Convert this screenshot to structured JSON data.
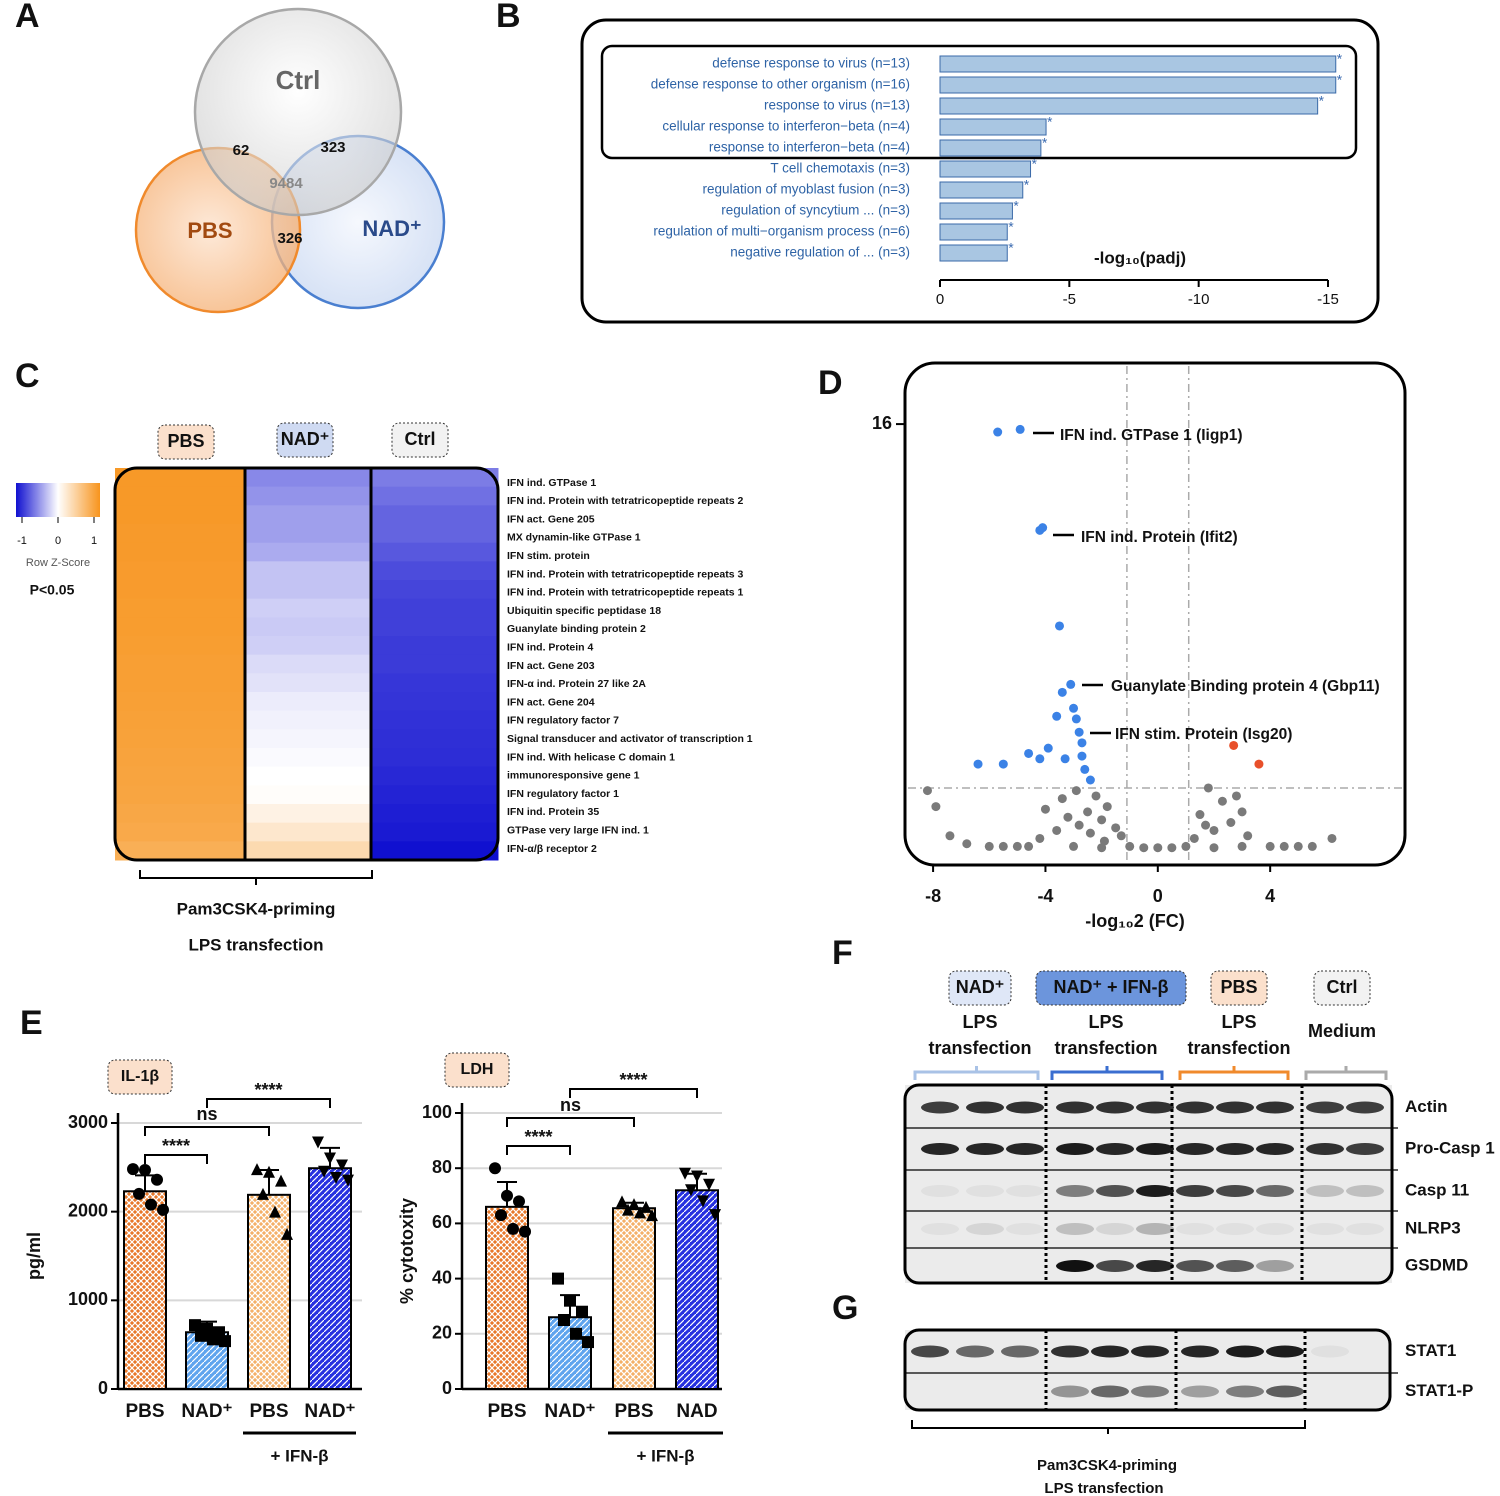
{
  "panel_labels": [
    "A",
    "B",
    "C",
    "D",
    "E",
    "F",
    "G"
  ],
  "venn": {
    "sets": [
      "Ctrl",
      "PBS",
      "NAD⁺"
    ],
    "counts": [
      62,
      323,
      9484,
      326
    ]
  },
  "chart_data": [
    {
      "type": "barh",
      "categories": [
        "defense response to virus (n=13)",
        "defense response to other organism (n=16)",
        "response to virus (n=13)",
        "cellular response to interferon−beta (n=4)",
        "response to interferon−beta (n=4)",
        "T cell chemotaxis (n=3)",
        "regulation of myoblast fusion (n=3)",
        "regulation of syncytium ... (n=3)",
        "regulation of multi−organism process (n=6)",
        "negative regulation of ... (n=3)"
      ],
      "values": [
        -15.3,
        -15.3,
        -14.6,
        -4.1,
        -3.9,
        -3.5,
        -3.2,
        -2.8,
        -2.6,
        -2.6
      ],
      "markers": [
        "*",
        "*",
        "*",
        "*",
        "*",
        "*",
        "*",
        "*",
        "*",
        "*"
      ],
      "color": "#a9c6e2",
      "xlabel": "-log₁₀(padj)",
      "xlim": [
        0,
        -15
      ],
      "xticks": [
        0,
        -5,
        -10,
        -15
      ]
    },
    {
      "type": "scatter",
      "xlabel": "-log₁₀2 (FC)",
      "xlim": [
        -9,
        8.8
      ],
      "ylim": [
        -0.6,
        18.3
      ],
      "xticks": [
        -8,
        -4,
        0,
        4
      ],
      "yticks": [
        16
      ],
      "vlines": [
        -1.1,
        1.1
      ],
      "hline": 2.3,
      "annotations": [
        "IFN ind. GTPase 1 (Iigp1)",
        "IFN ind. Protein (Ifit2)",
        "Guanylate Binding protein 4 (Gbp11)",
        "IFN stim. Protein (Isg20)"
      ],
      "series": [
        {
          "color": "#7a7a7a",
          "x": [
            -2.2,
            -1.8,
            -2.5,
            -2.0,
            -1.5,
            -2.8,
            -3.2,
            -1.3,
            -2.4,
            -3.6,
            -1.9,
            -4.2,
            -2.9,
            -4.0,
            -3.4,
            1.8,
            2.3,
            1.5,
            2.6,
            2.0,
            1.3,
            3.0,
            3.2,
            2.8,
            1.7,
            -8.2,
            -7.9,
            -7.4,
            -6.8,
            -6.0,
            -5.5,
            -5.0,
            -4.6,
            -1.0,
            -0.5,
            0,
            0.5,
            1.0,
            4.5,
            5.0,
            5.5,
            6.2,
            4.0,
            -3.0,
            -2.0,
            2.0,
            3.0
          ],
          "values": [
            2.0,
            1.6,
            1.4,
            1.1,
            0.8,
            0.9,
            1.2,
            0.5,
            0.6,
            0.7,
            0.3,
            0.4,
            2.2,
            1.5,
            1.9,
            2.3,
            1.8,
            1.3,
            1.0,
            0.7,
            0.4,
            1.4,
            0.5,
            2.0,
            0.9,
            2.2,
            1.6,
            0.5,
            0.2,
            0.1,
            0.1,
            0.1,
            0.1,
            0.1,
            0.05,
            0.05,
            0.05,
            0.1,
            0.1,
            0.1,
            0.1,
            0.4,
            0.1,
            0.1,
            0.05,
            0.05,
            0.1
          ]
        },
        {
          "color": "#3b82e6",
          "x": [
            -5.7,
            -4.9,
            -4.2,
            -4.1,
            -3.5,
            -3.1,
            -3.4,
            -3.6,
            -3.0,
            -2.9,
            -2.8,
            -2.7,
            -2.7,
            -2.6,
            -2.4,
            -3.9,
            -4.6,
            -5.5,
            -6.4,
            -4.2,
            -3.3
          ],
          "values": [
            15.7,
            15.8,
            12.0,
            12.1,
            8.4,
            6.2,
            5.9,
            5.0,
            5.3,
            4.9,
            4.4,
            4.0,
            3.5,
            3.0,
            2.6,
            3.8,
            3.6,
            3.2,
            3.2,
            3.4,
            3.4
          ]
        },
        {
          "color": "#e8502a",
          "x": [
            2.7,
            3.6
          ],
          "values": [
            3.9,
            3.2
          ]
        }
      ]
    },
    {
      "type": "bar",
      "title": "IL-1β",
      "categories": [
        "PBS",
        "NAD⁺",
        "PBS",
        "NAD⁺"
      ],
      "group_label": "+ IFN-β",
      "ylabel": "pg/ml",
      "ylim": [
        0,
        3000
      ],
      "yticks": [
        0,
        1000,
        2000,
        3000
      ],
      "grid": true,
      "values": [
        2230,
        640,
        2190,
        2490
      ],
      "errors": [
        180,
        120,
        280,
        230
      ],
      "points": [
        [
          2480,
          2470,
          2360,
          2200,
          2080,
          2020
        ],
        [
          720,
          680,
          640,
          600,
          560,
          540
        ],
        [
          2480,
          2450,
          2350,
          2200,
          2000,
          1750
        ],
        [
          2780,
          2600,
          2520,
          2450,
          2380,
          2350
        ]
      ],
      "markers": [
        "circle",
        "square",
        "triangle",
        "triangle-down"
      ],
      "colors": [
        "#e8782a",
        "#5fa4ee",
        "#f4b068",
        "#2630e0"
      ],
      "comparisons": [
        {
          "label": "****",
          "pair": [
            0,
            1
          ]
        },
        {
          "label": "ns",
          "pair": [
            0,
            2
          ]
        },
        {
          "label": "****",
          "pair": [
            1,
            3
          ]
        }
      ]
    },
    {
      "type": "bar",
      "title": "LDH",
      "categories": [
        "PBS",
        "NAD⁺",
        "PBS",
        "NAD"
      ],
      "group_label": "+ IFN-β",
      "ylabel": "% cytotoxity",
      "ylim": [
        0,
        100
      ],
      "yticks": [
        0,
        20,
        40,
        60,
        80,
        100
      ],
      "grid": true,
      "values": [
        66,
        26,
        65.5,
        72
      ],
      "errors": [
        9,
        8,
        2,
        6
      ],
      "points": [
        [
          80,
          70,
          68,
          63,
          58,
          57
        ],
        [
          40,
          32,
          28,
          25,
          20,
          17
        ],
        [
          68,
          67,
          66,
          65,
          64,
          63
        ],
        [
          78,
          77,
          74,
          72,
          68,
          63
        ]
      ],
      "markers": [
        "circle",
        "square",
        "triangle",
        "triangle-down"
      ],
      "colors": [
        "#e8782a",
        "#5fa4ee",
        "#f4b068",
        "#2630e0"
      ],
      "comparisons": [
        {
          "label": "****",
          "pair": [
            0,
            1
          ]
        },
        {
          "label": "ns",
          "pair": [
            0,
            2
          ]
        },
        {
          "label": "****",
          "pair": [
            1,
            3
          ]
        }
      ]
    }
  ],
  "heatmap": {
    "columns": [
      "PBS",
      "NAD⁺",
      "Ctrl"
    ],
    "rows": [
      "IFN ind. GTPase 1",
      "IFN ind. Protein with tetratricopeptide repeats 2",
      "IFN act. Gene 205",
      "MX dynamin-like GTPase 1",
      "IFN stim. protein",
      "IFN ind. Protein with tetratricopeptide repeats 3",
      "IFN ind. Protein with tetratricopeptide repeats 1",
      "Ubiquitin specific peptidase 18",
      "Guanylate binding protein 2",
      "IFN ind. Protein 4",
      "IFN act. Gene 203",
      "IFN-α ind. Protein 27 like 2A",
      "IFN act. Gene 204",
      "IFN regulatory factor 7",
      "Signal transducer and activator of transcription 1",
      "IFN ind. With helicase C domain 1",
      "immunoresponsive gene 1",
      "IFN regulatory factor 1",
      "IFN ind. Protein 35",
      "GTPase very large IFN ind. 1",
      "IFN-α/β receptor 2"
    ],
    "matrix": [
      [
        0.95,
        -0.5,
        -0.55
      ],
      [
        0.95,
        -0.45,
        -0.6
      ],
      [
        0.95,
        -0.4,
        -0.65
      ],
      [
        0.94,
        -0.4,
        -0.65
      ],
      [
        0.94,
        -0.35,
        -0.7
      ],
      [
        0.93,
        -0.25,
        -0.75
      ],
      [
        0.93,
        -0.25,
        -0.78
      ],
      [
        0.92,
        -0.2,
        -0.8
      ],
      [
        0.92,
        -0.22,
        -0.8
      ],
      [
        0.91,
        -0.2,
        -0.82
      ],
      [
        0.9,
        -0.15,
        -0.82
      ],
      [
        0.9,
        -0.12,
        -0.84
      ],
      [
        0.89,
        -0.08,
        -0.85
      ],
      [
        0.88,
        -0.06,
        -0.86
      ],
      [
        0.87,
        -0.04,
        -0.87
      ],
      [
        0.86,
        -0.02,
        -0.88
      ],
      [
        0.85,
        0.0,
        -0.9
      ],
      [
        0.84,
        0.02,
        -0.92
      ],
      [
        0.82,
        0.12,
        -0.94
      ],
      [
        0.8,
        0.22,
        -0.96
      ],
      [
        0.75,
        0.35,
        -1.0
      ]
    ],
    "colors": [
      "#1010d0",
      "#ffffff",
      "#f7941d"
    ],
    "scale_ticks": [
      -1,
      0,
      1
    ],
    "scale_label": "Row Z-Score",
    "note": "P<0.05",
    "bracket_labels": [
      "Pam3CSK4-priming",
      "LPS transfection"
    ]
  },
  "blot_f": {
    "groups": [
      "NAD⁺",
      "NAD⁺ + IFN-β",
      "PBS",
      "Ctrl"
    ],
    "conditions": [
      [
        "LPS",
        "transfection"
      ],
      [
        "LPS",
        "transfection"
      ],
      [
        "LPS",
        "transfection"
      ],
      [
        "Medium"
      ]
    ],
    "rows": [
      "Actin",
      "Pro-Casp 1",
      "Casp 11",
      "NLRP3",
      "GSDMD"
    ]
  },
  "blot_g": {
    "rows": [
      "STAT1",
      "STAT1-P"
    ],
    "bracket_labels": [
      "Pam3CSK4-priming",
      "LPS transfection"
    ]
  }
}
